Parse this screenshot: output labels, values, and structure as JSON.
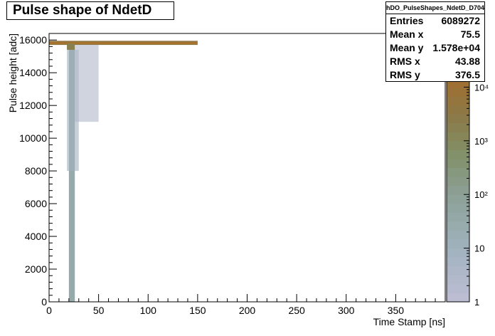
{
  "chart_data": {
    "type": "heatmap",
    "title": "Pulse shape of NdetD",
    "xlabel": "Time Stamp [ns]",
    "ylabel": "Pulse height [adc]",
    "xlim": [
      0,
      400
    ],
    "ylim": [
      0,
      16400
    ],
    "x_ticks": [
      0,
      50,
      100,
      150,
      200,
      250,
      300,
      350
    ],
    "y_ticks": [
      0,
      2000,
      4000,
      6000,
      8000,
      10000,
      12000,
      14000,
      16000
    ],
    "z_scale": "log",
    "z_range": [
      1,
      100000
    ],
    "z_ticks": [
      {
        "value": 1,
        "label": "1"
      },
      {
        "value": 10,
        "label": "10"
      },
      {
        "value": 100,
        "label": "10²"
      },
      {
        "value": 1000,
        "label": "10³"
      },
      {
        "value": 10000,
        "label": "10⁴"
      }
    ],
    "grid": false,
    "regions": [
      {
        "x": [
          0,
          150
        ],
        "y": [
          15700,
          15950
        ],
        "count": 5000
      },
      {
        "x": [
          0,
          150
        ],
        "y": [
          15780,
          15840
        ],
        "count": 50000
      },
      {
        "x": [
          18,
          26
        ],
        "y": [
          15400,
          15800
        ],
        "count": 2000
      },
      {
        "x": [
          20,
          26
        ],
        "y": [
          0,
          15400
        ],
        "count": 30
      },
      {
        "x": [
          18,
          30
        ],
        "y": [
          8000,
          15400
        ],
        "count": 8
      },
      {
        "x": [
          26,
          50
        ],
        "y": [
          11000,
          15700
        ],
        "count": 3
      }
    ],
    "stats": {
      "name": "hDO_PulseShapes_NdetD_D704",
      "entries": {
        "label": "Entries",
        "value": "6089272"
      },
      "mean_x": {
        "label": "Mean x",
        "value": "75.5"
      },
      "mean_y": {
        "label": "Mean y",
        "value": "1.578e+04"
      },
      "rms_x": {
        "label": "RMS x",
        "value": "43.88"
      },
      "rms_y": {
        "label": "RMS y",
        "value": "376.5"
      }
    }
  }
}
